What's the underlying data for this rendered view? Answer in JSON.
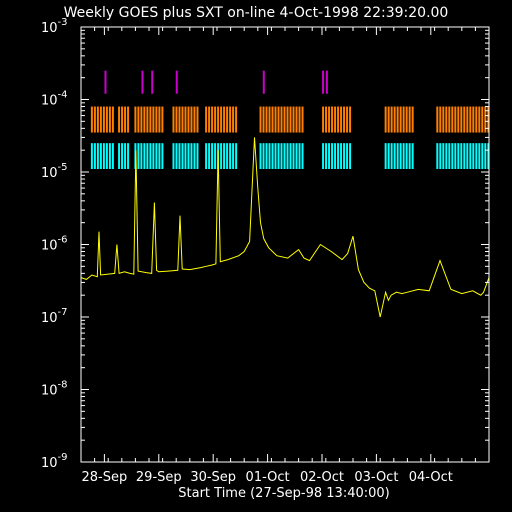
{
  "chart_data": {
    "type": "line",
    "title": "Weekly GOES plus SXT on-line  4-Oct-1998 22:39:20.00",
    "xlabel": "Start Time (27-Sep-98 13:40:00)",
    "x_range_days": [
      0,
      7.5
    ],
    "y_scale": "log",
    "ylim": [
      1e-09,
      0.001
    ],
    "y_ticks": [
      {
        "value": 1e-09,
        "base": "10",
        "exp": "-9"
      },
      {
        "value": 1e-08,
        "base": "10",
        "exp": "-8"
      },
      {
        "value": 1e-07,
        "base": "10",
        "exp": "-7"
      },
      {
        "value": 1e-06,
        "base": "10",
        "exp": "-6"
      },
      {
        "value": 1e-05,
        "base": "10",
        "exp": "-5"
      },
      {
        "value": 0.0001,
        "base": "10",
        "exp": "-4"
      },
      {
        "value": 0.001,
        "base": "10",
        "exp": "-3"
      }
    ],
    "x_ticks": [
      {
        "day": 0.43,
        "label": "28-Sep"
      },
      {
        "day": 1.43,
        "label": "29-Sep"
      },
      {
        "day": 2.43,
        "label": "30-Sep"
      },
      {
        "day": 3.43,
        "label": "01-Oct"
      },
      {
        "day": 4.43,
        "label": "02-Oct"
      },
      {
        "day": 5.43,
        "label": "03-Oct"
      },
      {
        "day": 6.43,
        "label": "04-Oct"
      }
    ],
    "series": [
      {
        "color": "#ffff00",
        "x": [
          0.0,
          0.1,
          0.2,
          0.3,
          0.33,
          0.36,
          0.5,
          0.62,
          0.66,
          0.7,
          0.8,
          0.9,
          0.97,
          1.01,
          1.05,
          1.2,
          1.3,
          1.35,
          1.39,
          1.43,
          1.6,
          1.78,
          1.82,
          1.86,
          2.0,
          2.2,
          2.3,
          2.4,
          2.48,
          2.52,
          2.56,
          2.7,
          2.9,
          3.0,
          3.1,
          3.19,
          3.25,
          3.3,
          3.36,
          3.45,
          3.6,
          3.8,
          4.0,
          4.1,
          4.2,
          4.4,
          4.6,
          4.8,
          4.9,
          5.0,
          5.1,
          5.2,
          5.3,
          5.4,
          5.5,
          5.6,
          5.65,
          5.7,
          5.8,
          5.9,
          6.0,
          6.2,
          6.4,
          6.6,
          6.8,
          7.0,
          7.2,
          7.35,
          7.4,
          7.5
        ],
        "y": [
          3.5e-07,
          3.3e-07,
          3.8e-07,
          3.6e-07,
          1.5e-06,
          3.8e-07,
          3.9e-07,
          4e-07,
          1e-06,
          4e-07,
          4.2e-07,
          4e-07,
          3.9e-07,
          2e-05,
          4.3e-07,
          4.1e-07,
          4e-07,
          3.8e-06,
          4.4e-07,
          4.2e-07,
          4.3e-07,
          4.4e-07,
          2.5e-06,
          4.6e-07,
          4.5e-07,
          4.8e-07,
          5e-07,
          5.2e-07,
          5.4e-07,
          2e-05,
          5.8e-07,
          6.2e-07,
          7e-07,
          8e-07,
          1.1e-06,
          3e-05,
          6e-06,
          2e-06,
          1.2e-06,
          9e-07,
          7e-07,
          6.5e-07,
          8.5e-07,
          6.5e-07,
          6e-07,
          1e-06,
          8e-07,
          6.2e-07,
          7.5e-07,
          1.3e-06,
          4.5e-07,
          3e-07,
          2.5e-07,
          2.3e-07,
          1e-07,
          2.2e-07,
          1.7e-07,
          2e-07,
          2.2e-07,
          2.1e-07,
          2.2e-07,
          2.4e-07,
          2.3e-07,
          6e-07,
          2.4e-07,
          2.1e-07,
          2.3e-07,
          2e-07,
          2.2e-07,
          3.5e-07
        ]
      }
    ],
    "sxt_bands": [
      {
        "color": "#cc00cc",
        "top": 0.00025,
        "bottom": 0.00012,
        "runs": [
          [
            0.45,
            0.49
          ],
          [
            1.13,
            1.16
          ],
          [
            1.31,
            1.34
          ],
          [
            1.76,
            1.79
          ],
          [
            3.36,
            3.39
          ],
          [
            4.45,
            4.48
          ],
          [
            4.52,
            4.55
          ]
        ]
      },
      {
        "color": "#ff8000",
        "top": 8e-05,
        "bottom": 3.5e-05,
        "runs": [
          [
            0.2,
            0.6
          ],
          [
            0.7,
            0.9
          ],
          [
            1.0,
            1.55
          ],
          [
            1.7,
            2.15
          ],
          [
            2.3,
            2.9
          ],
          [
            3.3,
            4.1
          ],
          [
            4.45,
            5.0
          ],
          [
            5.6,
            6.1
          ],
          [
            6.55,
            7.5
          ]
        ]
      },
      {
        "color": "#00ffff",
        "top": 2.5e-05,
        "bottom": 1.1e-05,
        "runs": [
          [
            0.2,
            0.6
          ],
          [
            0.7,
            0.9
          ],
          [
            1.0,
            1.55
          ],
          [
            1.7,
            2.15
          ],
          [
            2.3,
            2.9
          ],
          [
            3.3,
            4.1
          ],
          [
            4.45,
            5.0
          ],
          [
            5.6,
            6.1
          ],
          [
            6.55,
            7.5
          ]
        ]
      }
    ]
  }
}
